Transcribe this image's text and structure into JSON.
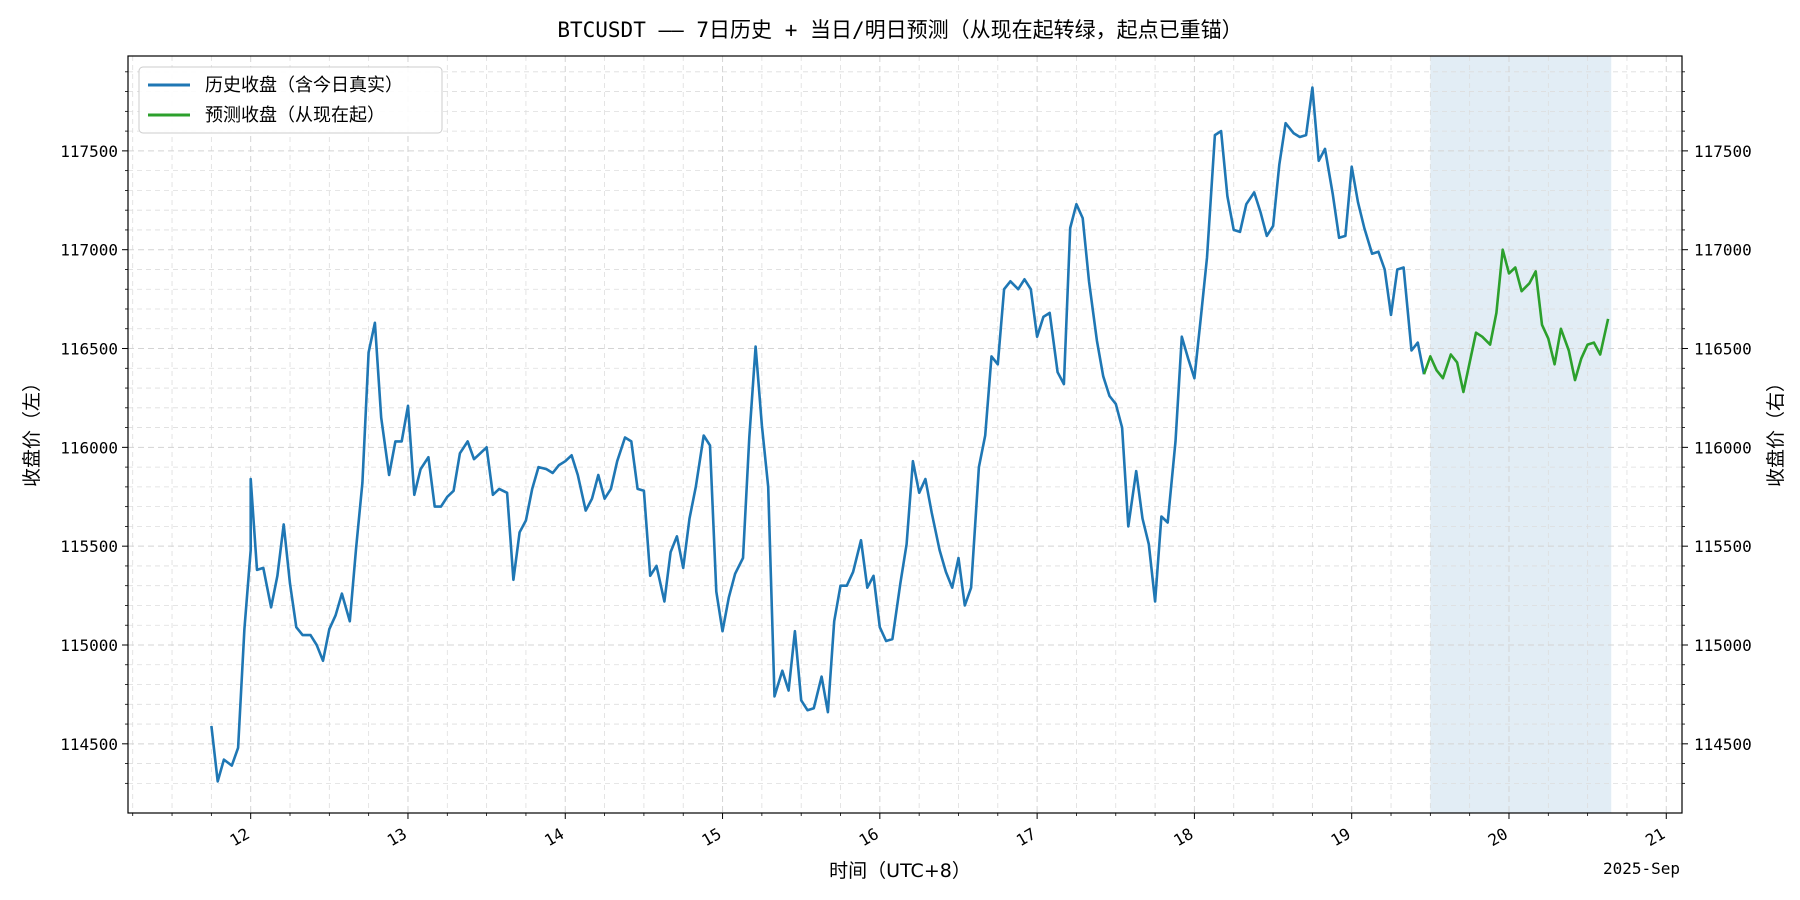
{
  "chart_data": {
    "type": "line",
    "title": "BTCUSDT —— 7日历史 + 当日/明日预测（从现在起转绿，起点已重锚）",
    "xlabel": "时间（UTC+8）",
    "ylabel_left": "收盘价（左）",
    "ylabel_right": "收盘价（右）",
    "x_offset_label": "2025-Sep",
    "x_unit": "day of September 2025 (UTC+8)",
    "xlim": [
      11.22,
      21.1
    ],
    "ylim": [
      114150,
      117980
    ],
    "x_ticks": [
      12,
      13,
      14,
      15,
      16,
      17,
      18,
      19,
      20,
      21
    ],
    "x_tick_labels": [
      "12",
      "13",
      "14",
      "15",
      "16",
      "17",
      "18",
      "19",
      "20",
      "21"
    ],
    "y_ticks": [
      114500,
      115000,
      115500,
      116000,
      116500,
      117000,
      117500
    ],
    "y_tick_labels": [
      "114500",
      "115000",
      "115500",
      "116000",
      "116500",
      "117000",
      "117500"
    ],
    "grid": true,
    "legend_position": "top-left",
    "forecast_window": [
      19.5,
      20.65
    ],
    "series": [
      {
        "name": "历史收盘（含今日真实）",
        "color": "#1f77b4",
        "points": [
          [
            11.75,
            114590
          ],
          [
            11.79,
            114310
          ],
          [
            11.83,
            114420
          ],
          [
            11.88,
            114390
          ],
          [
            11.92,
            114480
          ],
          [
            11.96,
            115080
          ],
          [
            12.0,
            115480
          ],
          [
            12.0,
            115840
          ],
          [
            12.04,
            115380
          ],
          [
            12.08,
            115390
          ],
          [
            12.13,
            115190
          ],
          [
            12.17,
            115350
          ],
          [
            12.21,
            115610
          ],
          [
            12.25,
            115310
          ],
          [
            12.29,
            115090
          ],
          [
            12.33,
            115050
          ],
          [
            12.38,
            115050
          ],
          [
            12.42,
            115000
          ],
          [
            12.46,
            114920
          ],
          [
            12.5,
            115080
          ],
          [
            12.54,
            115150
          ],
          [
            12.58,
            115260
          ],
          [
            12.63,
            115120
          ],
          [
            12.67,
            115490
          ],
          [
            12.71,
            115820
          ],
          [
            12.75,
            116480
          ],
          [
            12.79,
            116630
          ],
          [
            12.83,
            116150
          ],
          [
            12.88,
            115860
          ],
          [
            12.92,
            116030
          ],
          [
            12.96,
            116030
          ],
          [
            13.0,
            116210
          ],
          [
            13.04,
            115760
          ],
          [
            13.08,
            115890
          ],
          [
            13.13,
            115950
          ],
          [
            13.17,
            115700
          ],
          [
            13.21,
            115700
          ],
          [
            13.25,
            115750
          ],
          [
            13.29,
            115780
          ],
          [
            13.33,
            115970
          ],
          [
            13.38,
            116030
          ],
          [
            13.42,
            115940
          ],
          [
            13.46,
            115970
          ],
          [
            13.5,
            116000
          ],
          [
            13.54,
            115760
          ],
          [
            13.58,
            115790
          ],
          [
            13.63,
            115770
          ],
          [
            13.67,
            115330
          ],
          [
            13.71,
            115570
          ],
          [
            13.75,
            115630
          ],
          [
            13.79,
            115790
          ],
          [
            13.83,
            115900
          ],
          [
            13.88,
            115890
          ],
          [
            13.92,
            115870
          ],
          [
            13.96,
            115910
          ],
          [
            14.0,
            115930
          ],
          [
            14.04,
            115960
          ],
          [
            14.08,
            115860
          ],
          [
            14.13,
            115680
          ],
          [
            14.17,
            115740
          ],
          [
            14.21,
            115860
          ],
          [
            14.25,
            115740
          ],
          [
            14.29,
            115790
          ],
          [
            14.33,
            115930
          ],
          [
            14.38,
            116050
          ],
          [
            14.42,
            116030
          ],
          [
            14.46,
            115790
          ],
          [
            14.5,
            115780
          ],
          [
            14.54,
            115350
          ],
          [
            14.58,
            115400
          ],
          [
            14.63,
            115220
          ],
          [
            14.67,
            115470
          ],
          [
            14.71,
            115550
          ],
          [
            14.75,
            115390
          ],
          [
            14.79,
            115640
          ],
          [
            14.83,
            115800
          ],
          [
            14.88,
            116060
          ],
          [
            14.92,
            116010
          ],
          [
            14.96,
            115270
          ],
          [
            15.0,
            115070
          ],
          [
            15.04,
            115240
          ],
          [
            15.08,
            115360
          ],
          [
            15.13,
            115440
          ],
          [
            15.17,
            116050
          ],
          [
            15.21,
            116510
          ],
          [
            15.25,
            116110
          ],
          [
            15.29,
            115800
          ],
          [
            15.33,
            114740
          ],
          [
            15.38,
            114870
          ],
          [
            15.42,
            114770
          ],
          [
            15.46,
            115070
          ],
          [
            15.5,
            114720
          ],
          [
            15.54,
            114670
          ],
          [
            15.58,
            114680
          ],
          [
            15.63,
            114840
          ],
          [
            15.67,
            114660
          ],
          [
            15.71,
            115120
          ],
          [
            15.75,
            115300
          ],
          [
            15.79,
            115300
          ],
          [
            15.83,
            115370
          ],
          [
            15.88,
            115530
          ],
          [
            15.92,
            115290
          ],
          [
            15.96,
            115350
          ],
          [
            16.0,
            115090
          ],
          [
            16.04,
            115020
          ],
          [
            16.08,
            115030
          ],
          [
            16.13,
            115310
          ],
          [
            16.17,
            115510
          ],
          [
            16.21,
            115930
          ],
          [
            16.25,
            115770
          ],
          [
            16.29,
            115840
          ],
          [
            16.33,
            115670
          ],
          [
            16.38,
            115480
          ],
          [
            16.42,
            115370
          ],
          [
            16.46,
            115290
          ],
          [
            16.5,
            115440
          ],
          [
            16.54,
            115200
          ],
          [
            16.58,
            115290
          ],
          [
            16.63,
            115900
          ],
          [
            16.67,
            116060
          ],
          [
            16.71,
            116460
          ],
          [
            16.75,
            116420
          ],
          [
            16.79,
            116800
          ],
          [
            16.83,
            116840
          ],
          [
            16.88,
            116800
          ],
          [
            16.92,
            116850
          ],
          [
            16.96,
            116800
          ],
          [
            17.0,
            116560
          ],
          [
            17.04,
            116660
          ],
          [
            17.08,
            116680
          ],
          [
            17.13,
            116380
          ],
          [
            17.17,
            116320
          ],
          [
            17.21,
            117110
          ],
          [
            17.25,
            117230
          ],
          [
            17.29,
            117160
          ],
          [
            17.33,
            116840
          ],
          [
            17.38,
            116540
          ],
          [
            17.42,
            116360
          ],
          [
            17.46,
            116260
          ],
          [
            17.5,
            116220
          ],
          [
            17.54,
            116100
          ],
          [
            17.58,
            115600
          ],
          [
            17.63,
            115880
          ],
          [
            17.67,
            115640
          ],
          [
            17.71,
            115510
          ],
          [
            17.75,
            115220
          ],
          [
            17.79,
            115650
          ],
          [
            17.83,
            115620
          ],
          [
            17.88,
            116030
          ],
          [
            17.92,
            116560
          ],
          [
            17.96,
            116450
          ],
          [
            18.0,
            116350
          ],
          [
            18.04,
            116650
          ],
          [
            18.08,
            116960
          ],
          [
            18.13,
            117580
          ],
          [
            18.17,
            117600
          ],
          [
            18.21,
            117270
          ],
          [
            18.25,
            117100
          ],
          [
            18.29,
            117090
          ],
          [
            18.33,
            117230
          ],
          [
            18.38,
            117290
          ],
          [
            18.42,
            117190
          ],
          [
            18.46,
            117070
          ],
          [
            18.5,
            117120
          ],
          [
            18.54,
            117430
          ],
          [
            18.58,
            117640
          ],
          [
            18.63,
            117590
          ],
          [
            18.67,
            117570
          ],
          [
            18.71,
            117580
          ],
          [
            18.75,
            117820
          ],
          [
            18.79,
            117450
          ],
          [
            18.83,
            117510
          ],
          [
            18.88,
            117280
          ],
          [
            18.92,
            117060
          ],
          [
            18.96,
            117070
          ],
          [
            19.0,
            117420
          ],
          [
            19.04,
            117240
          ],
          [
            19.08,
            117110
          ],
          [
            19.13,
            116980
          ],
          [
            19.17,
            116990
          ],
          [
            19.21,
            116900
          ],
          [
            19.25,
            116670
          ],
          [
            19.29,
            116900
          ],
          [
            19.33,
            116910
          ],
          [
            19.38,
            116490
          ],
          [
            19.42,
            116530
          ],
          [
            19.46,
            116370
          ]
        ]
      },
      {
        "name": "预测收盘（从现在起）",
        "color": "#2ca02c",
        "points": [
          [
            19.46,
            116370
          ],
          [
            19.5,
            116460
          ],
          [
            19.54,
            116390
          ],
          [
            19.58,
            116350
          ],
          [
            19.63,
            116470
          ],
          [
            19.67,
            116430
          ],
          [
            19.71,
            116280
          ],
          [
            19.75,
            116430
          ],
          [
            19.79,
            116580
          ],
          [
            19.83,
            116560
          ],
          [
            19.88,
            116520
          ],
          [
            19.92,
            116680
          ],
          [
            19.96,
            117000
          ],
          [
            20.0,
            116880
          ],
          [
            20.04,
            116910
          ],
          [
            20.08,
            116790
          ],
          [
            20.13,
            116830
          ],
          [
            20.17,
            116890
          ],
          [
            20.21,
            116620
          ],
          [
            20.25,
            116550
          ],
          [
            20.29,
            116420
          ],
          [
            20.33,
            116600
          ],
          [
            20.38,
            116490
          ],
          [
            20.42,
            116340
          ],
          [
            20.46,
            116450
          ],
          [
            20.5,
            116520
          ],
          [
            20.54,
            116530
          ],
          [
            20.58,
            116470
          ],
          [
            20.63,
            116650
          ]
        ]
      }
    ]
  }
}
